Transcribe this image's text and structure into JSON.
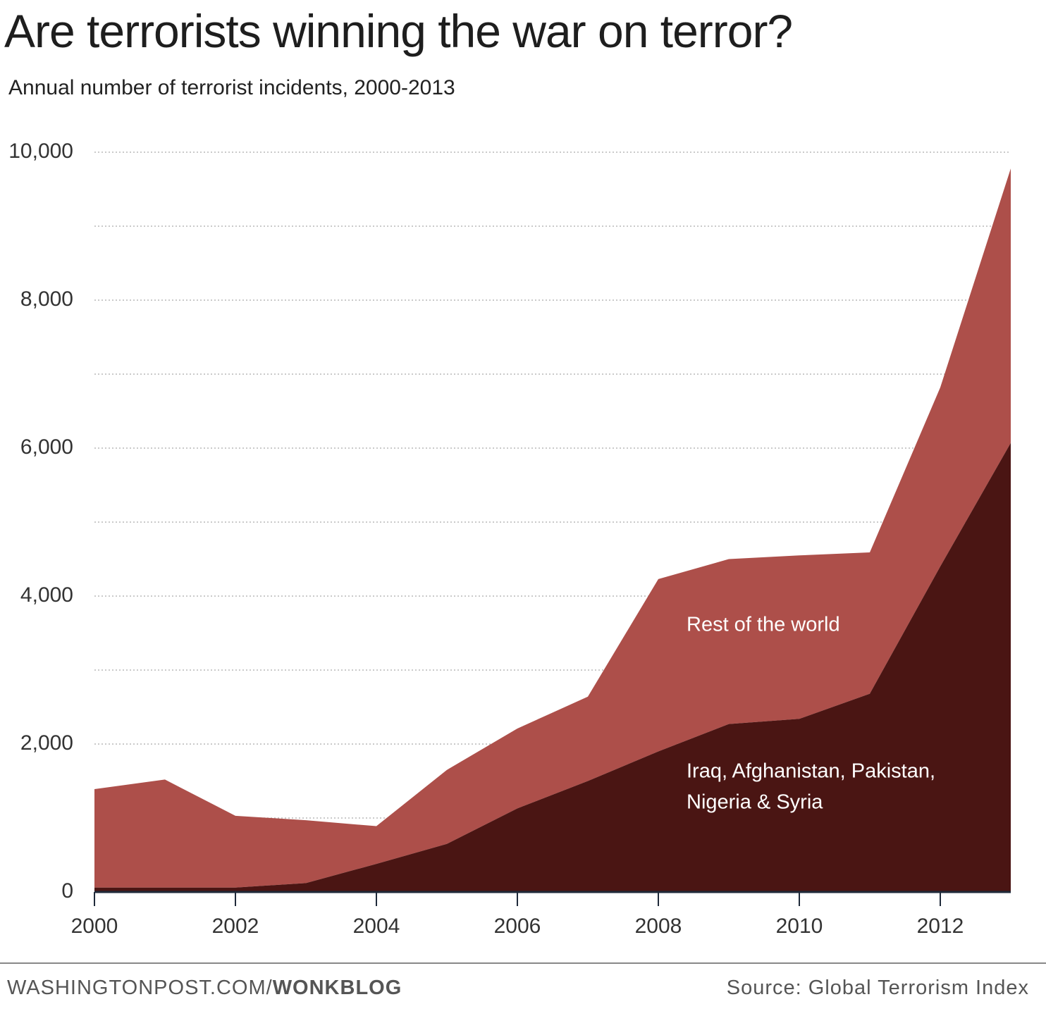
{
  "title": "Are terrorists winning the war on terror?",
  "subtitle": "Annual number of terrorist incidents, 2000-2013",
  "footer": {
    "site": "WASHINGTONPOST.COM/",
    "section": "WONKBLOG",
    "source": "Source: Global Terrorism Index"
  },
  "colors": {
    "rest_of_world": "#ad4f4a",
    "five_countries": "#4a1513",
    "grid": "#b8b8b8",
    "axis": "#1f2a3a",
    "area_label": "#ffffff",
    "tick_label": "#333333"
  },
  "chart_data": {
    "type": "area",
    "stacked": true,
    "title": "Are terrorists winning the war on terror?",
    "subtitle": "Annual number of terrorist incidents, 2000-2013",
    "x": [
      2000,
      2001,
      2002,
      2003,
      2004,
      2005,
      2006,
      2007,
      2008,
      2009,
      2010,
      2011,
      2012,
      2013
    ],
    "ylim": [
      0,
      10000
    ],
    "y_ticks": [
      0,
      2000,
      4000,
      6000,
      8000,
      10000
    ],
    "y_tick_labels": [
      "0",
      "2,000",
      "4,000",
      "6,000",
      "8,000",
      "10,000"
    ],
    "y_minor_gridlines": [
      1000,
      3000,
      5000,
      7000,
      9000
    ],
    "x_ticks": [
      2000,
      2002,
      2004,
      2006,
      2008,
      2010,
      2012
    ],
    "x_tick_labels": [
      "2000",
      "2002",
      "2004",
      "2006",
      "2008",
      "2010",
      "2012"
    ],
    "grid": true,
    "series": [
      {
        "name": "Iraq, Afghanistan, Pakistan, Nigeria & Syria",
        "label_lines": [
          "Iraq, Afghanistan, Pakistan,",
          "Nigeria & Syria"
        ],
        "label_anchor": {
          "x": 2008.4,
          "y": 1550
        },
        "values": [
          60,
          60,
          60,
          120,
          380,
          650,
          1130,
          1500,
          1900,
          2270,
          2340,
          2680,
          4400,
          6070
        ]
      },
      {
        "name": "Rest of the world",
        "label_lines": [
          "Rest of the world"
        ],
        "label_anchor": {
          "x": 2008.4,
          "y": 3530
        },
        "values": [
          1330,
          1460,
          970,
          850,
          510,
          1000,
          1080,
          1140,
          2330,
          2230,
          2210,
          1910,
          2420,
          3710
        ]
      }
    ]
  }
}
